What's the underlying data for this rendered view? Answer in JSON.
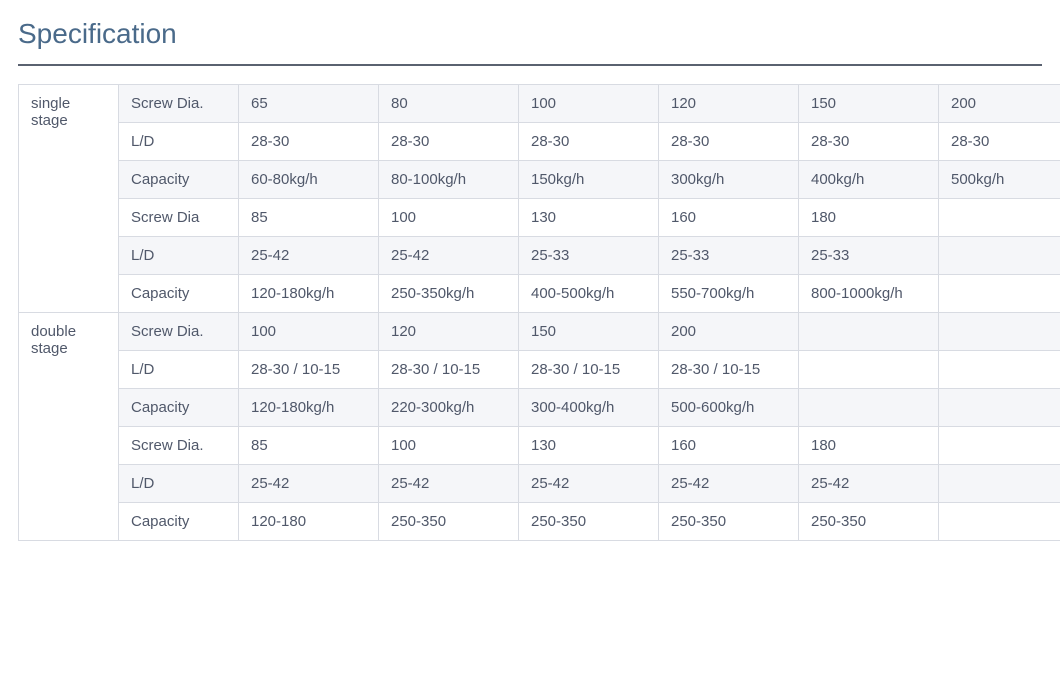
{
  "heading": "Specification",
  "colors": {
    "heading": "#4a6a8a",
    "rule": "#5a6270",
    "text": "#50586a",
    "border": "#d8dbe2",
    "row_shade": "#f5f6f9",
    "background": "#ffffff"
  },
  "table": {
    "columns": 8,
    "data_column_count": 6,
    "groups": [
      {
        "label": "single stage",
        "rows": [
          {
            "shaded": true,
            "label": "Screw Dia.",
            "cells": [
              "65",
              "80",
              "100",
              "120",
              "150",
              "200"
            ]
          },
          {
            "shaded": false,
            "label": "L/D",
            "cells": [
              "28-30",
              "28-30",
              "28-30",
              "28-30",
              "28-30",
              "28-30"
            ]
          },
          {
            "shaded": true,
            "label": "Capacity",
            "cells": [
              "60-80kg/h",
              "80-100kg/h",
              "150kg/h",
              "300kg/h",
              "400kg/h",
              "500kg/h"
            ]
          },
          {
            "shaded": false,
            "label": "Screw Dia",
            "cells": [
              "85",
              "100",
              "130",
              "160",
              "180",
              ""
            ]
          },
          {
            "shaded": true,
            "label": "L/D",
            "cells": [
              "25-42",
              "25-42",
              "25-33",
              "25-33",
              "25-33",
              ""
            ]
          },
          {
            "shaded": false,
            "label": "Capacity",
            "cells": [
              "120-180kg/h",
              "250-350kg/h",
              "400-500kg/h",
              "550-700kg/h",
              "800-1000kg/h",
              ""
            ]
          }
        ]
      },
      {
        "label": "double stage",
        "rows": [
          {
            "shaded": true,
            "label": "Screw Dia.",
            "cells": [
              "100",
              "120",
              "150",
              "200",
              "",
              ""
            ]
          },
          {
            "shaded": false,
            "label": "L/D",
            "cells": [
              "28-30 / 10-15",
              "28-30 / 10-15",
              "28-30 / 10-15",
              "28-30 / 10-15",
              "",
              ""
            ]
          },
          {
            "shaded": true,
            "label": "Capacity",
            "cells": [
              "120-180kg/h",
              "220-300kg/h",
              "300-400kg/h",
              "500-600kg/h",
              "",
              ""
            ]
          },
          {
            "shaded": false,
            "label": "Screw Dia.",
            "cells": [
              "85",
              "100",
              "130",
              "160",
              "180",
              ""
            ]
          },
          {
            "shaded": true,
            "label": "L/D",
            "cells": [
              "25-42",
              "25-42",
              "25-42",
              "25-42",
              "25-42",
              ""
            ]
          },
          {
            "shaded": false,
            "label": "Capacity",
            "cells": [
              "120-180",
              "250-350",
              "250-350",
              "250-350",
              "250-350",
              ""
            ]
          }
        ]
      }
    ]
  }
}
